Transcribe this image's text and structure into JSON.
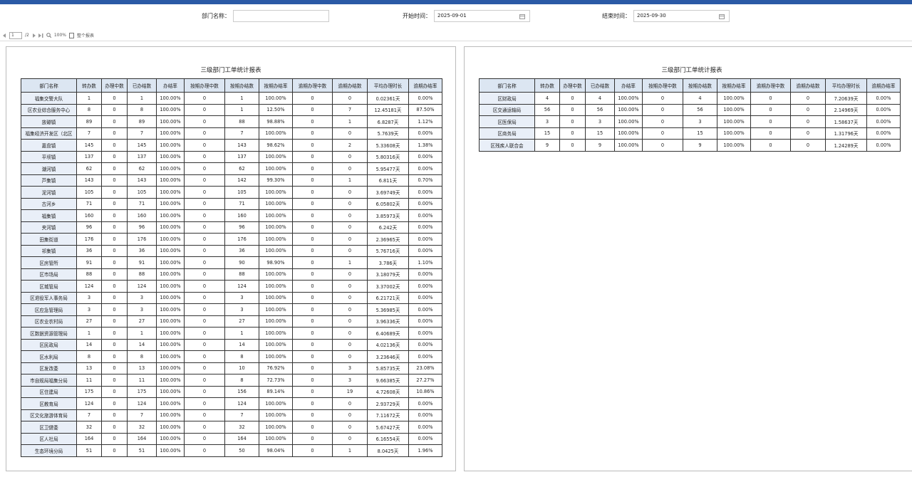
{
  "filters": {
    "dept_label": "部门名称：",
    "start_label": "开始时间：",
    "start_value": "2025-09-01",
    "end_label": "结束时间：",
    "end_value": "2025-09-30"
  },
  "toolbar": {
    "page": "1",
    "pages": "/2",
    "zoom": "100%",
    "view": "整个报表"
  },
  "headers": [
    "部门名称",
    "转办数",
    "办理中数",
    "已办结数",
    "办结率",
    "按期办理中数",
    "按期办结数",
    "按期办结率",
    "逾期办理中数",
    "逾期办结数",
    "平均办理时长",
    "逾期办结率"
  ],
  "tables": [
    {
      "title": "三级部门工单统计报表",
      "rows": [
        [
          "福集交警大队",
          "1",
          "0",
          "1",
          "100.00%",
          "0",
          "1",
          "100.00%",
          "0",
          "0",
          "0.02361天",
          "0.00%"
        ],
        [
          "区农业综合服务中心",
          "8",
          "0",
          "8",
          "100.00%",
          "0",
          "1",
          "12.50%",
          "0",
          "7",
          "12.45181天",
          "87.50%"
        ],
        [
          "放磡镇",
          "89",
          "0",
          "89",
          "100.00%",
          "0",
          "88",
          "98.88%",
          "0",
          "1",
          "6.8287天",
          "1.12%"
        ],
        [
          "福集经济开发区（北区",
          "7",
          "0",
          "7",
          "100.00%",
          "0",
          "7",
          "100.00%",
          "0",
          "0",
          "5.7639天",
          "0.00%"
        ],
        [
          "嘉盘镇",
          "145",
          "0",
          "145",
          "100.00%",
          "0",
          "143",
          "98.62%",
          "0",
          "2",
          "5.33608天",
          "1.38%"
        ],
        [
          "平坝镇",
          "137",
          "0",
          "137",
          "100.00%",
          "0",
          "137",
          "100.00%",
          "0",
          "0",
          "5.80316天",
          "0.00%"
        ],
        [
          "潮河镇",
          "62",
          "0",
          "62",
          "100.00%",
          "0",
          "62",
          "100.00%",
          "0",
          "0",
          "5.95477天",
          "0.00%"
        ],
        [
          "芦集镇",
          "143",
          "0",
          "143",
          "100.00%",
          "0",
          "142",
          "99.30%",
          "0",
          "1",
          "6.811天",
          "0.70%"
        ],
        [
          "泥河镇",
          "105",
          "0",
          "105",
          "100.00%",
          "0",
          "105",
          "100.00%",
          "0",
          "0",
          "3.69749天",
          "0.00%"
        ],
        [
          "古河乡",
          "71",
          "0",
          "71",
          "100.00%",
          "0",
          "71",
          "100.00%",
          "0",
          "0",
          "6.05802天",
          "0.00%"
        ],
        [
          "福集镇",
          "160",
          "0",
          "160",
          "100.00%",
          "0",
          "160",
          "100.00%",
          "0",
          "0",
          "3.85973天",
          "0.00%"
        ],
        [
          "夹河镇",
          "96",
          "0",
          "96",
          "100.00%",
          "0",
          "96",
          "100.00%",
          "0",
          "0",
          "6.242天",
          "0.00%"
        ],
        [
          "田集街道",
          "176",
          "0",
          "176",
          "100.00%",
          "0",
          "176",
          "100.00%",
          "0",
          "0",
          "2.36965天",
          "0.00%"
        ],
        [
          "祁集镇",
          "36",
          "0",
          "36",
          "100.00%",
          "0",
          "36",
          "100.00%",
          "0",
          "0",
          "5.76716天",
          "0.00%"
        ],
        [
          "区房管所",
          "91",
          "0",
          "91",
          "100.00%",
          "0",
          "90",
          "98.90%",
          "0",
          "1",
          "3.786天",
          "1.10%"
        ],
        [
          "区市场局",
          "88",
          "0",
          "88",
          "100.00%",
          "0",
          "88",
          "100.00%",
          "0",
          "0",
          "3.18079天",
          "0.00%"
        ],
        [
          "区城管局",
          "124",
          "0",
          "124",
          "100.00%",
          "0",
          "124",
          "100.00%",
          "0",
          "0",
          "3.37002天",
          "0.00%"
        ],
        [
          "区退役军人事务局",
          "3",
          "0",
          "3",
          "100.00%",
          "0",
          "3",
          "100.00%",
          "0",
          "0",
          "6.21721天",
          "0.00%"
        ],
        [
          "区应急管理局",
          "3",
          "0",
          "3",
          "100.00%",
          "0",
          "3",
          "100.00%",
          "0",
          "0",
          "5.36985天",
          "0.00%"
        ],
        [
          "区农业农村局",
          "27",
          "0",
          "27",
          "100.00%",
          "0",
          "27",
          "100.00%",
          "0",
          "0",
          "3.96336天",
          "0.00%"
        ],
        [
          "区数据资源管理局",
          "1",
          "0",
          "1",
          "100.00%",
          "0",
          "1",
          "100.00%",
          "0",
          "0",
          "6.40689天",
          "0.00%"
        ],
        [
          "区民政局",
          "14",
          "0",
          "14",
          "100.00%",
          "0",
          "14",
          "100.00%",
          "0",
          "0",
          "4.02136天",
          "0.00%"
        ],
        [
          "区水利局",
          "8",
          "0",
          "8",
          "100.00%",
          "0",
          "8",
          "100.00%",
          "0",
          "0",
          "3.23646天",
          "0.00%"
        ],
        [
          "区发改委",
          "13",
          "0",
          "13",
          "100.00%",
          "0",
          "10",
          "76.92%",
          "0",
          "3",
          "5.85735天",
          "23.08%"
        ],
        [
          "市自规局福集分局",
          "11",
          "0",
          "11",
          "100.00%",
          "0",
          "8",
          "72.73%",
          "0",
          "3",
          "9.66385天",
          "27.27%"
        ],
        [
          "区住建局",
          "175",
          "0",
          "175",
          "100.00%",
          "0",
          "156",
          "89.14%",
          "0",
          "19",
          "4.72608天",
          "10.86%"
        ],
        [
          "区教育局",
          "124",
          "0",
          "124",
          "100.00%",
          "0",
          "124",
          "100.00%",
          "0",
          "0",
          "2.93729天",
          "0.00%"
        ],
        [
          "区文化旅游体育局",
          "7",
          "0",
          "7",
          "100.00%",
          "0",
          "7",
          "100.00%",
          "0",
          "0",
          "7.11672天",
          "0.00%"
        ],
        [
          "区卫健委",
          "32",
          "0",
          "32",
          "100.00%",
          "0",
          "32",
          "100.00%",
          "0",
          "0",
          "5.67427天",
          "0.00%"
        ],
        [
          "区人社局",
          "164",
          "0",
          "164",
          "100.00%",
          "0",
          "164",
          "100.00%",
          "0",
          "0",
          "6.16554天",
          "0.00%"
        ],
        [
          "生态环境分局",
          "51",
          "0",
          "51",
          "100.00%",
          "0",
          "50",
          "98.04%",
          "0",
          "1",
          "8.0425天",
          "1.96%"
        ]
      ]
    },
    {
      "title": "三级部门工单统计报表",
      "rows": [
        [
          "区财政局",
          "4",
          "0",
          "4",
          "100.00%",
          "0",
          "4",
          "100.00%",
          "0",
          "0",
          "7.20639天",
          "0.00%"
        ],
        [
          "区交通运输局",
          "56",
          "0",
          "56",
          "100.00%",
          "0",
          "56",
          "100.00%",
          "0",
          "0",
          "2.14969天",
          "0.00%"
        ],
        [
          "区医保局",
          "3",
          "0",
          "3",
          "100.00%",
          "0",
          "3",
          "100.00%",
          "0",
          "0",
          "1.58637天",
          "0.00%"
        ],
        [
          "区商务局",
          "15",
          "0",
          "15",
          "100.00%",
          "0",
          "15",
          "100.00%",
          "0",
          "0",
          "1.31796天",
          "0.00%"
        ],
        [
          "区残疾人联合会",
          "9",
          "0",
          "9",
          "100.00%",
          "0",
          "9",
          "100.00%",
          "0",
          "0",
          "1.24289天",
          "0.00%"
        ]
      ]
    }
  ]
}
